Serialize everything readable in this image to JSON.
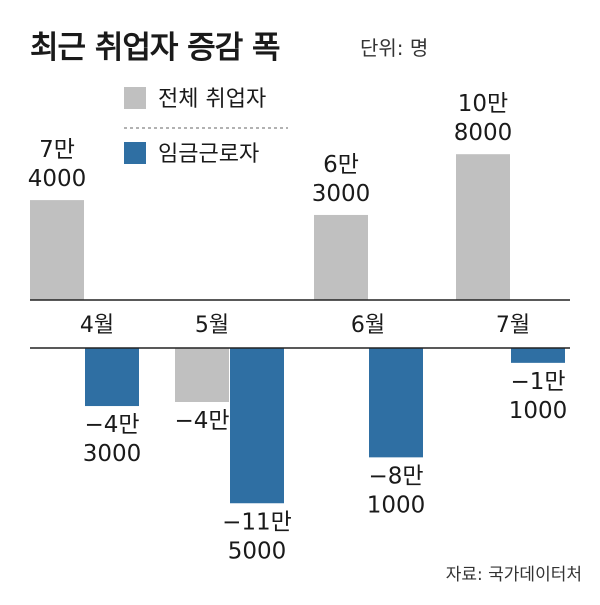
{
  "header": {
    "title": "최근 취업자 증감 폭",
    "unit": "단위: 명"
  },
  "source": "자료: 국가데이터처",
  "chart_data": {
    "type": "bar",
    "title": "최근 취업자 증감 폭",
    "unit": "단위: 명",
    "categories": [
      "4월",
      "5월",
      "6월",
      "7월"
    ],
    "series": [
      {
        "name": "전체 취업자",
        "color": "#c0c0c0",
        "values": [
          74000,
          -40000,
          63000,
          108000
        ],
        "labels": [
          [
            "7만",
            "4000"
          ],
          [
            "−4만"
          ],
          [
            "6만",
            "3000"
          ],
          [
            "10만",
            "8000"
          ]
        ]
      },
      {
        "name": "임금근로자",
        "color": "#2f6fa3",
        "values": [
          -43000,
          -115000,
          -81000,
          -11000
        ],
        "labels": [
          [
            "−4만",
            "3000"
          ],
          [
            "−11만",
            "5000"
          ],
          [
            "−8만",
            "1000"
          ],
          [
            "−1만",
            "1000"
          ]
        ]
      }
    ],
    "legend": "top-left",
    "grid": false
  }
}
